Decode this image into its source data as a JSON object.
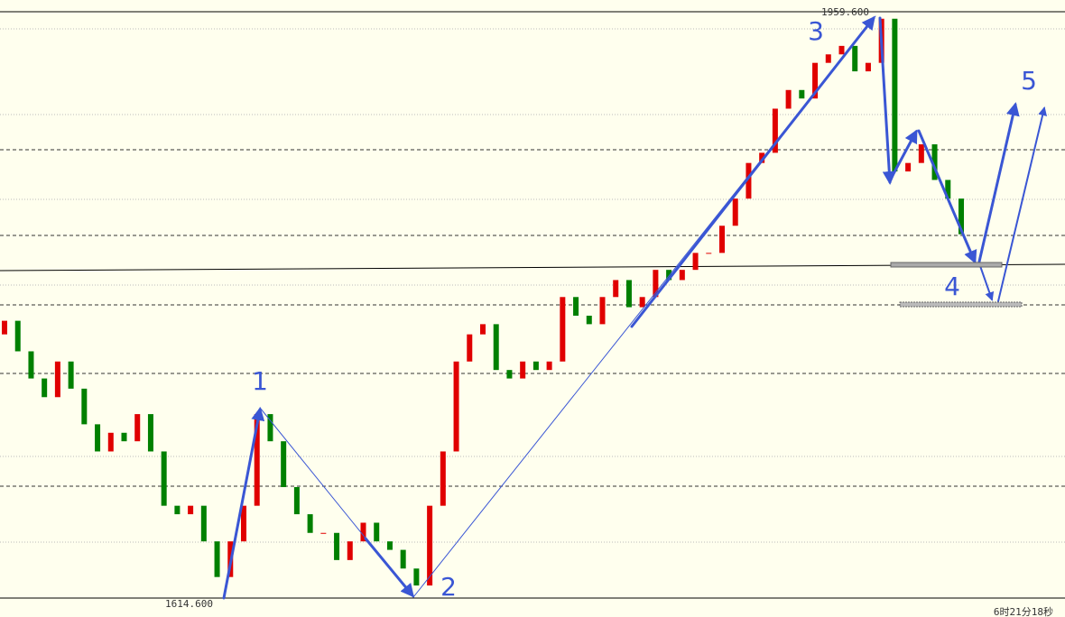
{
  "chart_data": {
    "type": "candlestick",
    "high_label": {
      "value": 1959.6,
      "label": "1959.600"
    },
    "low_label": {
      "value": 1614.6,
      "label": "1614.600"
    },
    "up_color": "#e00000",
    "down_color": "#008000",
    "open": [
      1770,
      1778,
      1760,
      1744,
      1733,
      1754,
      1738,
      1717,
      1701,
      1712,
      1707,
      1723,
      1701,
      1669,
      1664,
      1669,
      1648,
      1627,
      1648,
      1669,
      1723,
      1707,
      1680,
      1664,
      1653,
      1653,
      1637,
      1648,
      1659,
      1648,
      1643,
      1632,
      1622,
      1669,
      1701,
      1754,
      1770,
      1776,
      1749,
      1744,
      1754,
      1749,
      1754,
      1792,
      1781,
      1776,
      1792,
      1802,
      1786,
      1792,
      1808,
      1802,
      1808,
      1818,
      1818,
      1834,
      1850,
      1871,
      1877,
      1903,
      1914,
      1909,
      1930,
      1935,
      1940,
      1925,
      1930,
      1956,
      1866,
      1871,
      1882,
      1861,
      1850
    ],
    "close": [
      1778,
      1760,
      1744,
      1733,
      1754,
      1738,
      1717,
      1701,
      1712,
      1707,
      1723,
      1701,
      1669,
      1664,
      1669,
      1648,
      1627,
      1648,
      1669,
      1723,
      1707,
      1680,
      1664,
      1653,
      1653,
      1637,
      1648,
      1659,
      1648,
      1643,
      1632,
      1622,
      1669,
      1701,
      1754,
      1770,
      1776,
      1749,
      1744,
      1754,
      1749,
      1754,
      1792,
      1781,
      1776,
      1792,
      1802,
      1786,
      1792,
      1808,
      1802,
      1808,
      1818,
      1818,
      1834,
      1850,
      1871,
      1877,
      1903,
      1914,
      1909,
      1930,
      1935,
      1940,
      1925,
      1930,
      1956,
      1866,
      1871,
      1882,
      1861,
      1850,
      1829
    ],
    "wave_labels": [
      "1",
      "2",
      "3",
      "4",
      "5"
    ],
    "timestamp": "6时21分18秒"
  }
}
